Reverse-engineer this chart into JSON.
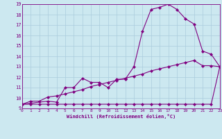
{
  "xlabel": "Windchill (Refroidissement éolien,°C)",
  "bg_color": "#cce8f0",
  "line_color": "#800080",
  "grid_color": "#aaccdd",
  "xmin": 0,
  "xmax": 23,
  "ymin": 9,
  "ymax": 19,
  "line1_x": [
    0,
    1,
    2,
    3,
    4,
    5,
    6,
    7,
    8,
    9,
    10,
    11,
    12,
    13,
    14,
    15,
    16,
    17,
    18,
    19,
    20,
    21,
    22,
    23
  ],
  "line1_y": [
    9.4,
    9.4,
    9.4,
    9.4,
    9.4,
    9.4,
    9.4,
    9.4,
    9.4,
    9.4,
    9.4,
    9.4,
    9.4,
    9.4,
    9.4,
    9.4,
    9.4,
    9.4,
    9.4,
    9.4,
    9.4,
    9.4,
    9.4,
    13.0
  ],
  "line2_x": [
    0,
    1,
    2,
    3,
    4,
    5,
    6,
    7,
    8,
    9,
    10,
    11,
    12,
    13,
    14,
    15,
    16,
    17,
    18,
    19,
    20,
    21,
    22,
    23
  ],
  "line2_y": [
    9.4,
    9.7,
    9.7,
    10.1,
    10.2,
    10.4,
    10.6,
    10.8,
    11.1,
    11.3,
    11.5,
    11.7,
    11.9,
    12.1,
    12.3,
    12.6,
    12.8,
    13.0,
    13.2,
    13.4,
    13.6,
    13.1,
    13.1,
    13.0
  ],
  "line3_x": [
    0,
    3,
    4,
    5,
    6,
    7,
    8,
    9,
    10,
    11,
    12,
    13,
    14,
    15,
    16,
    17,
    18,
    19,
    20,
    21,
    22,
    23
  ],
  "line3_y": [
    9.4,
    9.7,
    9.6,
    11.0,
    11.0,
    11.9,
    11.5,
    11.5,
    11.0,
    11.8,
    11.8,
    13.0,
    16.4,
    18.5,
    18.7,
    19.0,
    18.5,
    17.6,
    17.1,
    14.5,
    14.2,
    13.0
  ],
  "xticks": [
    0,
    1,
    2,
    3,
    4,
    5,
    6,
    7,
    8,
    9,
    10,
    11,
    12,
    13,
    14,
    15,
    16,
    17,
    18,
    19,
    20,
    21,
    22,
    23
  ],
  "yticks": [
    9,
    10,
    11,
    12,
    13,
    14,
    15,
    16,
    17,
    18,
    19
  ]
}
